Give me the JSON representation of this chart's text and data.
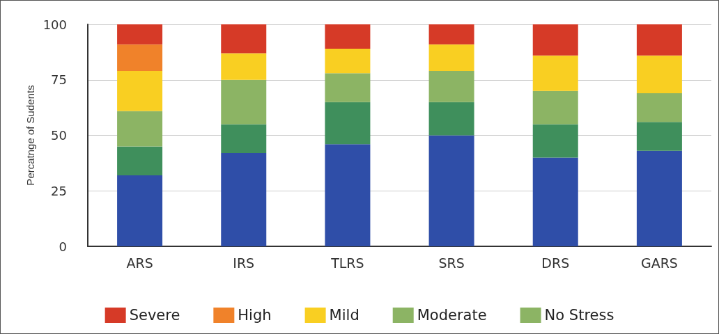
{
  "chart_data": {
    "type": "bar",
    "stacked": true,
    "ylabel": "Percatnge of Sudents",
    "categories": [
      "ARS",
      "IRS",
      "TLRS",
      "SRS",
      "DRS",
      "GARS"
    ],
    "series": [
      {
        "name": "No Stress",
        "color": "#8cb464",
        "values": [
          null,
          null,
          null,
          null,
          null,
          null
        ]
      },
      {
        "color": "#2f4ea8",
        "values": [
          32,
          42,
          46,
          50,
          40,
          43
        ]
      },
      {
        "color": "#3f8f5c",
        "values": [
          13,
          13,
          19,
          15,
          15,
          13
        ]
      },
      {
        "name": "Moderate",
        "color": "#8cb464",
        "values": [
          16,
          20,
          13,
          14,
          15,
          13
        ]
      },
      {
        "name": "Mild",
        "color": "#f9cf22",
        "values": [
          18,
          12,
          11,
          12,
          16,
          17
        ]
      },
      {
        "name": "High",
        "color": "#f0822a",
        "values": [
          12,
          0,
          0,
          0,
          0,
          0
        ]
      },
      {
        "name": "Severe",
        "color": "#d63a27",
        "values": [
          9,
          13,
          11,
          9,
          14,
          14
        ]
      }
    ],
    "ylim": [
      0,
      100
    ],
    "yticks": [
      0,
      25,
      50,
      75,
      100
    ],
    "grid": "y",
    "legend": "bottom"
  }
}
